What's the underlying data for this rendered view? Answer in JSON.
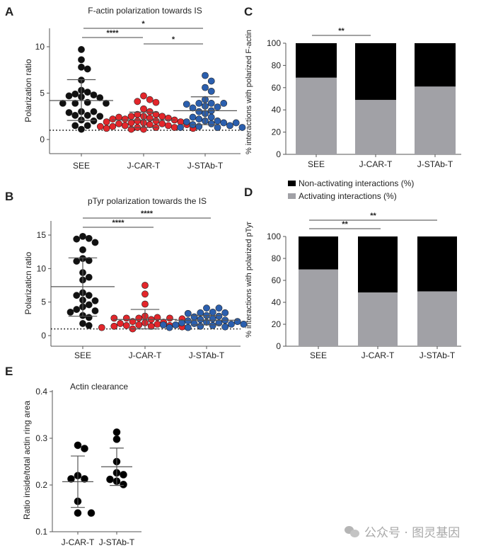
{
  "chart_data": [
    {
      "panel": "A",
      "type": "scatter",
      "title": "F-actin polarization towards IS",
      "ylabel": "Polarization  ratio",
      "categories": [
        "SEE",
        "J-CAR-T",
        "J-STAb-T"
      ],
      "ylim": [
        -1.5,
        12.5
      ],
      "yticks": [
        0,
        5,
        10
      ],
      "reference_line": 1,
      "colors": [
        "#111111",
        "#e3262b",
        "#2b5fae"
      ],
      "series": [
        {
          "values": [
            9.7,
            8.6,
            7.8,
            7.6,
            6.4,
            5.3,
            5.1,
            4.9,
            4.8,
            4.7,
            4.6,
            4.5,
            4.0,
            3.9,
            3.9,
            3.9,
            3.0,
            3.0,
            2.9,
            2.6,
            2.6,
            2.5,
            2.1,
            2.0,
            1.5,
            1.5,
            1.1
          ],
          "mean": 4.2,
          "sd": [
            2.05,
            6.45
          ]
        },
        {
          "values": [
            4.7,
            4.3,
            4.1,
            4.0,
            3.3,
            3.0,
            2.7,
            2.7,
            2.5,
            2.5,
            2.5,
            2.4,
            2.3,
            2.3,
            2.2,
            2.2,
            2.1,
            2.0,
            2.0,
            1.9,
            1.9,
            1.8,
            1.8,
            1.7,
            1.7,
            1.6,
            1.6,
            1.5,
            1.5,
            1.4,
            1.4,
            1.3,
            1.3,
            1.3,
            1.2,
            1.2,
            1.1,
            1.1
          ],
          "mean": 2.1,
          "sd": [
            1.3,
            2.95
          ]
        },
        {
          "values": [
            6.9,
            6.3,
            5.6,
            5.2,
            4.3,
            3.9,
            3.9,
            3.9,
            3.8,
            3.6,
            3.5,
            3.4,
            3.1,
            3.0,
            2.8,
            2.4,
            2.4,
            2.2,
            2.0,
            2.0,
            1.9,
            1.8,
            1.8,
            1.7,
            1.6,
            1.5,
            1.4,
            1.3,
            1.3,
            1.3
          ],
          "mean": 3.1,
          "sd": [
            1.6,
            4.6
          ]
        }
      ],
      "significance": [
        {
          "from": "SEE",
          "to": "J-STAb-T",
          "label": "*"
        },
        {
          "from": "SEE",
          "to": "J-CAR-T",
          "label": "****"
        },
        {
          "from": "J-CAR-T",
          "to": "J-STAb-T",
          "label": "*"
        }
      ]
    },
    {
      "panel": "B",
      "type": "scatter",
      "title": "pTyr polarization towards the IS",
      "ylabel": "Polarizaticn  ratio",
      "categories": [
        "SEE",
        "J-CAR-T",
        "J-STAb-T"
      ],
      "ylim": [
        -1.5,
        17
      ],
      "yticks": [
        0,
        5,
        10,
        15
      ],
      "reference_line": 1,
      "colors": [
        "#111111",
        "#e3262b",
        "#2b5fae"
      ],
      "series": [
        {
          "values": [
            14.8,
            14.5,
            14.4,
            13.9,
            12.8,
            11.5,
            11.2,
            11.1,
            9.4,
            8.7,
            8.3,
            6.4,
            6.0,
            6.0,
            5.3,
            5.2,
            4.6,
            4.3,
            3.9,
            3.7,
            3.5,
            3.0,
            2.7,
            1.8,
            1.5
          ],
          "mean": 7.3,
          "sd": [
            2.9,
            11.6
          ]
        },
        {
          "values": [
            7.5,
            6.2,
            4.7,
            2.9,
            2.7,
            2.6,
            2.6,
            2.6,
            2.6,
            2.5,
            2.4,
            2.1,
            2.0,
            1.9,
            1.8,
            1.7,
            1.6,
            1.5,
            1.5,
            1.4,
            1.4,
            1.3,
            1.2,
            1.0
          ],
          "mean": 2.4,
          "sd": [
            1.0,
            3.9
          ]
        },
        {
          "values": [
            4.1,
            4.1,
            3.5,
            3.4,
            3.4,
            3.3,
            3.0,
            2.9,
            2.8,
            2.5,
            2.4,
            2.3,
            2.2,
            2.1,
            2.0,
            1.9,
            1.9,
            1.8,
            1.7,
            1.7,
            1.6,
            1.6,
            1.5,
            1.4,
            1.3,
            1.2,
            1.2
          ],
          "mean": 2.3,
          "sd": [
            1.6,
            3.0
          ]
        }
      ],
      "significance": [
        {
          "from": "SEE",
          "to": "J-STAb-T",
          "label": "****"
        },
        {
          "from": "SEE",
          "to": "J-CAR-T",
          "label": "****"
        }
      ]
    },
    {
      "panel": "C",
      "type": "bar",
      "stacked": true,
      "ylabel": "% interactions with polarized F-actin",
      "categories": [
        "SEE",
        "J-CAR-T",
        "J-STAb-T"
      ],
      "ylim": [
        0,
        100
      ],
      "yticks": [
        0,
        20,
        40,
        60,
        80,
        100
      ],
      "series": [
        {
          "name": "Activating interactions (%)",
          "color": "#a1a1a6",
          "values": [
            69,
            49,
            61
          ]
        },
        {
          "name": "Non-activating interactions (%)",
          "color": "#000000",
          "values": [
            31,
            51,
            39
          ]
        }
      ],
      "significance": [
        {
          "from": "SEE",
          "to": "J-CAR-T",
          "label": "**"
        }
      ]
    },
    {
      "panel": "D",
      "type": "bar",
      "stacked": true,
      "ylabel": "% interactions with polarized pTyr",
      "categories": [
        "SEE",
        "J-CAR-T",
        "J-STAb-T"
      ],
      "ylim": [
        0,
        100
      ],
      "yticks": [
        0,
        20,
        40,
        60,
        80,
        100
      ],
      "legend": {
        "position": "top-left",
        "entries": [
          "Non-activating interactions (%)",
          "Activating interactions (%)"
        ]
      },
      "series": [
        {
          "name": "Activating interactions (%)",
          "color": "#a1a1a6",
          "values": [
            70,
            49,
            50
          ]
        },
        {
          "name": "Non-activating interactions (%)",
          "color": "#000000",
          "values": [
            30,
            51,
            50
          ]
        }
      ],
      "significance": [
        {
          "from": "SEE",
          "to": "J-STAb-T",
          "label": "**"
        },
        {
          "from": "SEE",
          "to": "J-CAR-T",
          "label": "**"
        }
      ]
    },
    {
      "panel": "E",
      "type": "scatter",
      "title": "Actin clearance",
      "ylabel": "Ratio inside/total actin ring area",
      "categories": [
        "J-CAR-T",
        "J-STAb-T"
      ],
      "ylim": [
        0.1,
        0.4
      ],
      "yticks": [
        0.1,
        0.2,
        0.3,
        0.4
      ],
      "colors": [
        "#000000",
        "#000000"
      ],
      "series": [
        {
          "values": [
            0.285,
            0.278,
            0.22,
            0.213,
            0.213,
            0.165,
            0.14,
            0.14
          ],
          "mean": 0.207,
          "sd": [
            0.152,
            0.262
          ]
        },
        {
          "values": [
            0.313,
            0.298,
            0.25,
            0.226,
            0.222,
            0.212,
            0.208,
            0.201
          ],
          "mean": 0.239,
          "sd": [
            0.199,
            0.279
          ]
        }
      ]
    }
  ],
  "watermark": {
    "icon": "wechat-icon",
    "text": "公众号 · 图灵基因"
  }
}
